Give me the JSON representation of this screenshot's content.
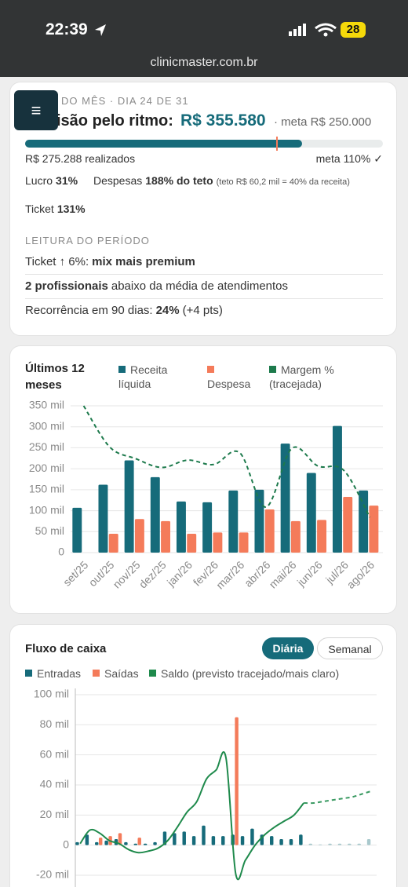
{
  "status_bar": {
    "time": "22:39",
    "battery": "28",
    "url": "clinicmaster.com.br"
  },
  "summary": {
    "period": "DO MÊS · DIA 24 DE 31",
    "forecast_label": "isão pelo ritmo:",
    "forecast": {
      "value": 355580,
      "label": "R$ 355.580"
    },
    "meta": {
      "value": 250000,
      "label": "· meta R$ 250.000"
    },
    "realized": {
      "value": 275288,
      "label": "R$ 275.288 realizados"
    },
    "meta_pct": "meta 110% ✓",
    "lucro": {
      "label": "Lucro",
      "value": "31%"
    },
    "despesas": {
      "label": "Despesas",
      "value": "188% do teto",
      "note": "(teto R$ 60,2 mil = 40% da receita)"
    },
    "ticket": {
      "label": "Ticket",
      "value": "131%"
    },
    "reading": {
      "title": "LEITURA DO PERÍODO",
      "rows": [
        [
          {
            "text": "Ticket ↑ 6%:",
            "bold": false
          },
          {
            "text": "mix mais premium",
            "bold": true
          }
        ],
        [
          {
            "text": "2 profissionais",
            "bold": true
          },
          {
            "text": "abaixo da média de atendimentos",
            "bold": false
          }
        ],
        [
          {
            "text": "Recorrência em 90 dias:",
            "bold": false
          },
          {
            "text": "24%",
            "bold": true
          },
          {
            "text": "(+4 pts)",
            "bold": false
          }
        ]
      ]
    }
  },
  "chart_data": [
    {
      "type": "bar",
      "title": "Últimos 12 meses",
      "categories": [
        "set/25",
        "out/25",
        "nov/25",
        "dez/25",
        "jan/26",
        "fev/26",
        "mar/26",
        "abr/26",
        "mai/26",
        "jun/26",
        "jul/26",
        "ago/26"
      ],
      "series": [
        {
          "name": "Receita líquida",
          "color": "#166b7a",
          "values": [
            107,
            162,
            220,
            180,
            122,
            120,
            148,
            150,
            260,
            190,
            302,
            148
          ]
        },
        {
          "name": "Despesa",
          "color": "#f47b5a",
          "values": [
            null,
            45,
            80,
            75,
            45,
            48,
            48,
            103,
            75,
            78,
            133,
            112
          ]
        },
        {
          "name": "Margem % (tracejada)",
          "color": "#1d7a4c",
          "type": "line",
          "dashed": true,
          "axis": "y2",
          "values": [
            100,
            72,
            64,
            58,
            63,
            60,
            68,
            31,
            71,
            59,
            56,
            24
          ]
        }
      ],
      "ylim": [
        0,
        350
      ],
      "yticks": [
        0,
        {
          "value": 50,
          "label": "50 mil"
        },
        {
          "value": 100,
          "label": "100 mil"
        },
        {
          "value": 150,
          "label": "150 mil"
        },
        {
          "value": 200,
          "label": "200 mil"
        },
        {
          "value": 250,
          "label": "250 mil"
        },
        {
          "value": 300,
          "label": "300 mil"
        },
        {
          "value": 350,
          "label": "350 mil"
        }
      ],
      "y2lim": [
        0,
        100
      ],
      "grid": true
    },
    {
      "type": "bar",
      "title": "Fluxo de caixa",
      "toggles": [
        "Diária",
        "Semanal"
      ],
      "active_toggle": 0,
      "series": [
        {
          "name": "Entradas",
          "color": "#166b7a",
          "forecast_color": "#a9c9cd",
          "values": [
            2,
            7,
            2,
            3,
            4,
            2,
            1,
            1,
            2,
            9,
            8,
            9,
            6,
            13,
            6,
            6,
            7,
            6,
            11,
            7,
            6,
            4,
            4,
            7,
            null,
            null,
            null,
            null,
            null,
            null,
            null
          ],
          "forecast_values": [
            null,
            null,
            null,
            null,
            null,
            null,
            null,
            null,
            null,
            null,
            null,
            null,
            null,
            null,
            null,
            null,
            null,
            null,
            null,
            null,
            null,
            null,
            null,
            null,
            1,
            0.5,
            1,
            1,
            1,
            1,
            4
          ]
        },
        {
          "name": "Saídas",
          "color": "#f47b5a",
          "values": [
            null,
            null,
            5,
            6,
            8,
            null,
            5,
            null,
            null,
            null,
            null,
            null,
            null,
            null,
            null,
            null,
            85,
            null,
            null,
            null,
            null,
            null,
            null,
            null,
            null,
            null,
            null,
            null,
            null,
            null,
            null
          ]
        },
        {
          "name": "Saldo (previsto tracejado/mais claro)",
          "color": "#1f8a4c",
          "forecast_color": "#3a9a62",
          "type": "line",
          "values": [
            1,
            10,
            8,
            3,
            1,
            -3,
            -5,
            -4,
            -2,
            3,
            12,
            22,
            29,
            44,
            50,
            58,
            -19,
            -10,
            0,
            7,
            12,
            16,
            20,
            28,
            null,
            null,
            null,
            null,
            null,
            null,
            null
          ],
          "forecast_values": [
            null,
            null,
            null,
            null,
            null,
            null,
            null,
            null,
            null,
            null,
            null,
            null,
            null,
            null,
            null,
            null,
            null,
            null,
            null,
            null,
            null,
            null,
            null,
            28,
            28,
            29,
            30,
            31,
            32,
            34,
            36
          ]
        }
      ],
      "ylim": [
        -20,
        100
      ],
      "yticks": [
        {
          "value": -20,
          "label": "-20 mil"
        },
        0,
        {
          "value": 20,
          "label": "20 mil"
        },
        {
          "value": 40,
          "label": "40 mil"
        },
        {
          "value": 60,
          "label": "60 mil"
        },
        {
          "value": 80,
          "label": "80 mil"
        },
        {
          "value": 100,
          "label": "100 mil"
        }
      ],
      "grid": true
    }
  ]
}
